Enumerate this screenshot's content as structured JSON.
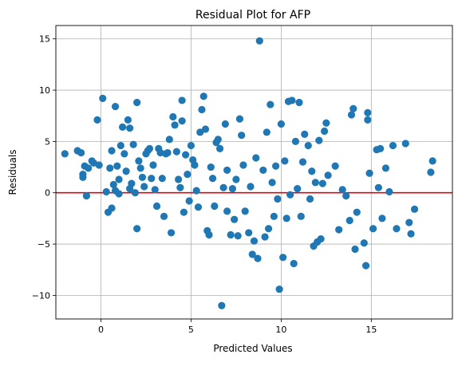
{
  "chart_data": {
    "type": "scatter",
    "title": "Residual Plot for AFP",
    "xlabel": "Predicted Values",
    "ylabel": "Residuals",
    "xlim": [
      -2.5,
      19.5
    ],
    "ylim": [
      -12.3,
      16.3
    ],
    "xticks": [
      0,
      5,
      10,
      15
    ],
    "xtick_labels": [
      "0",
      "5",
      "10",
      "15"
    ],
    "yticks": [
      -10,
      -5,
      0,
      5,
      10,
      15
    ],
    "ytick_labels": [
      "−10",
      "−5",
      "0",
      "5",
      "10",
      "15"
    ],
    "grid": true,
    "legend": "none",
    "reference_line": {
      "y": 0,
      "color": "#e8000b"
    },
    "marker_color": "#1f77b4",
    "points": [
      [
        -2.0,
        3.8
      ],
      [
        -1.3,
        4.1
      ],
      [
        -1.1,
        3.9
      ],
      [
        -1.0,
        1.8
      ],
      [
        -1.0,
        1.5
      ],
      [
        -0.9,
        2.6
      ],
      [
        -0.8,
        -0.3
      ],
      [
        -0.7,
        2.4
      ],
      [
        -0.5,
        3.1
      ],
      [
        -0.4,
        2.9
      ],
      [
        -0.2,
        7.1
      ],
      [
        -0.1,
        2.7
      ],
      [
        0.1,
        9.2
      ],
      [
        0.3,
        0.1
      ],
      [
        0.4,
        -1.9
      ],
      [
        0.5,
        2.4
      ],
      [
        0.6,
        4.1
      ],
      [
        0.6,
        -1.5
      ],
      [
        0.7,
        0.8
      ],
      [
        0.8,
        8.4
      ],
      [
        0.8,
        0.2
      ],
      [
        0.9,
        2.6
      ],
      [
        1.0,
        1.3
      ],
      [
        1.0,
        -0.1
      ],
      [
        1.1,
        4.6
      ],
      [
        1.2,
        6.4
      ],
      [
        1.3,
        3.8
      ],
      [
        1.4,
        2.1
      ],
      [
        1.5,
        7.1
      ],
      [
        1.6,
        0.4
      ],
      [
        1.6,
        6.3
      ],
      [
        1.7,
        0.9
      ],
      [
        1.8,
        4.7
      ],
      [
        1.9,
        0.0
      ],
      [
        2.0,
        -3.5
      ],
      [
        2.0,
        8.8
      ],
      [
        2.1,
        3.1
      ],
      [
        2.2,
        2.4
      ],
      [
        2.3,
        1.5
      ],
      [
        2.4,
        0.6
      ],
      [
        2.5,
        3.8
      ],
      [
        2.6,
        4.1
      ],
      [
        2.7,
        4.3
      ],
      [
        2.8,
        1.4
      ],
      [
        2.9,
        2.7
      ],
      [
        3.0,
        0.3
      ],
      [
        3.1,
        -1.3
      ],
      [
        3.2,
        4.3
      ],
      [
        3.3,
        3.9
      ],
      [
        3.4,
        1.4
      ],
      [
        3.5,
        -2.3
      ],
      [
        3.6,
        3.8
      ],
      [
        3.7,
        3.9
      ],
      [
        3.8,
        5.2
      ],
      [
        3.9,
        -3.9
      ],
      [
        4.0,
        7.4
      ],
      [
        4.1,
        6.6
      ],
      [
        4.2,
        4.0
      ],
      [
        4.3,
        1.3
      ],
      [
        4.4,
        0.5
      ],
      [
        4.5,
        7.0
      ],
      [
        4.5,
        9.0
      ],
      [
        4.6,
        -1.9
      ],
      [
        4.7,
        3.7
      ],
      [
        4.8,
        1.8
      ],
      [
        4.9,
        -0.8
      ],
      [
        5.0,
        4.6
      ],
      [
        5.1,
        3.2
      ],
      [
        5.2,
        2.7
      ],
      [
        5.3,
        0.2
      ],
      [
        5.4,
        -1.4
      ],
      [
        5.5,
        5.9
      ],
      [
        5.6,
        8.1
      ],
      [
        5.7,
        9.4
      ],
      [
        5.8,
        6.2
      ],
      [
        5.9,
        -3.7
      ],
      [
        6.0,
        -4.1
      ],
      [
        6.1,
        2.5
      ],
      [
        6.2,
        1.4
      ],
      [
        6.3,
        -1.3
      ],
      [
        6.4,
        4.9
      ],
      [
        6.5,
        5.2
      ],
      [
        6.6,
        4.3
      ],
      [
        6.7,
        -11.0
      ],
      [
        6.8,
        0.5
      ],
      [
        6.9,
        6.7
      ],
      [
        7.0,
        -1.8
      ],
      [
        7.0,
        2.2
      ],
      [
        7.2,
        -4.1
      ],
      [
        7.3,
        0.4
      ],
      [
        7.4,
        -2.6
      ],
      [
        7.5,
        1.3
      ],
      [
        7.6,
        -4.2
      ],
      [
        7.7,
        7.2
      ],
      [
        7.8,
        5.6
      ],
      [
        7.9,
        2.7
      ],
      [
        8.0,
        -1.8
      ],
      [
        8.2,
        -3.9
      ],
      [
        8.3,
        0.6
      ],
      [
        8.4,
        -6.0
      ],
      [
        8.5,
        -4.7
      ],
      [
        8.6,
        3.4
      ],
      [
        8.7,
        -6.4
      ],
      [
        8.8,
        14.8
      ],
      [
        9.0,
        2.2
      ],
      [
        9.1,
        -4.3
      ],
      [
        9.2,
        5.9
      ],
      [
        9.3,
        -3.5
      ],
      [
        9.4,
        8.6
      ],
      [
        9.5,
        1.0
      ],
      [
        9.6,
        -2.3
      ],
      [
        9.7,
        2.6
      ],
      [
        9.8,
        -0.6
      ],
      [
        9.9,
        -9.4
      ],
      [
        10.0,
        6.7
      ],
      [
        10.1,
        -6.3
      ],
      [
        10.2,
        3.1
      ],
      [
        10.3,
        -2.5
      ],
      [
        10.4,
        8.9
      ],
      [
        10.5,
        -0.2
      ],
      [
        10.6,
        9.0
      ],
      [
        10.7,
        -6.9
      ],
      [
        10.8,
        5.0
      ],
      [
        10.9,
        0.4
      ],
      [
        11.0,
        8.8
      ],
      [
        11.1,
        -2.3
      ],
      [
        11.2,
        3.0
      ],
      [
        11.3,
        5.7
      ],
      [
        11.5,
        4.6
      ],
      [
        11.6,
        -0.6
      ],
      [
        11.7,
        2.1
      ],
      [
        11.8,
        -5.2
      ],
      [
        11.9,
        1.0
      ],
      [
        12.0,
        -4.8
      ],
      [
        12.1,
        5.1
      ],
      [
        12.2,
        -4.5
      ],
      [
        12.3,
        0.9
      ],
      [
        12.4,
        6.0
      ],
      [
        12.5,
        6.8
      ],
      [
        12.6,
        1.7
      ],
      [
        13.0,
        2.6
      ],
      [
        13.2,
        -3.6
      ],
      [
        13.4,
        0.3
      ],
      [
        13.6,
        -0.3
      ],
      [
        13.8,
        -2.7
      ],
      [
        13.9,
        7.6
      ],
      [
        14.0,
        8.2
      ],
      [
        14.1,
        -5.5
      ],
      [
        14.2,
        -1.9
      ],
      [
        14.6,
        -4.9
      ],
      [
        14.7,
        -7.1
      ],
      [
        14.8,
        7.8
      ],
      [
        14.8,
        7.1
      ],
      [
        14.9,
        1.9
      ],
      [
        15.1,
        -3.5
      ],
      [
        15.3,
        4.2
      ],
      [
        15.4,
        0.5
      ],
      [
        15.5,
        4.3
      ],
      [
        15.6,
        -2.5
      ],
      [
        15.8,
        2.4
      ],
      [
        16.0,
        0.1
      ],
      [
        16.2,
        4.6
      ],
      [
        16.4,
        -3.5
      ],
      [
        16.9,
        4.8
      ],
      [
        17.1,
        -2.9
      ],
      [
        17.2,
        -4.0
      ],
      [
        17.4,
        -1.6
      ],
      [
        18.3,
        2.0
      ],
      [
        18.4,
        3.1
      ]
    ]
  }
}
